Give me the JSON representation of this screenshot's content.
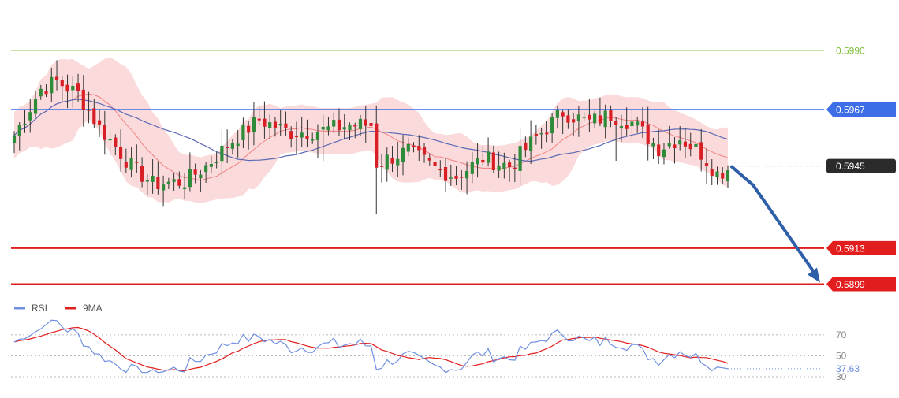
{
  "colors": {
    "bull": "#2e8b3a",
    "bear": "#d81f26",
    "bb_fill": "#f9d4d4",
    "ma_slow": "#5b6bb5",
    "ma_fast": "#ef6b6b",
    "resistance_green": "#7cbf3a",
    "resistance_blue": "#3d6ee8",
    "support_red": "#e21d1d",
    "arrow": "#2f5fa8",
    "rsi": "#6f8fe0",
    "rsi_ma": "#e21d1d",
    "last_price_bg": "#2b2b2b"
  },
  "chart_data": [
    {
      "type": "candlestick",
      "ylim": [
        0.5893,
        0.6002
      ],
      "levels": [
        {
          "value": 0.599,
          "label": "0.5990",
          "style": "resistance",
          "color": "#7cbf3a"
        },
        {
          "value": 0.5967,
          "label": "0.5967",
          "style": "resistance",
          "color": "#3d6ee8"
        },
        {
          "value": 0.5945,
          "label": "0.5945",
          "style": "last-price",
          "color": "#2b2b2b"
        },
        {
          "value": 0.5913,
          "label": "0.5913",
          "style": "support",
          "color": "#e21d1d"
        },
        {
          "value": 0.5899,
          "label": "0.5899",
          "style": "support",
          "color": "#e21d1d"
        }
      ],
      "forecast_arrow": {
        "from": 0.5945,
        "via": 0.594,
        "to": 0.5899
      },
      "anchors": [
        [
          0,
          0.5957
        ],
        [
          5,
          0.5975
        ],
        [
          8,
          0.5978
        ],
        [
          12,
          0.5973
        ],
        [
          16,
          0.596
        ],
        [
          22,
          0.5945
        ],
        [
          26,
          0.5938
        ],
        [
          32,
          0.5939
        ],
        [
          36,
          0.5945
        ],
        [
          41,
          0.5955
        ],
        [
          46,
          0.5963
        ],
        [
          52,
          0.5958
        ],
        [
          58,
          0.5959
        ],
        [
          63,
          0.5961
        ],
        [
          67,
          0.5961
        ],
        [
          68,
          0.5946
        ],
        [
          74,
          0.5951
        ],
        [
          79,
          0.5944
        ],
        [
          83,
          0.5941
        ],
        [
          88,
          0.5948
        ],
        [
          93,
          0.5945
        ],
        [
          98,
          0.5956
        ],
        [
          103,
          0.5966
        ],
        [
          108,
          0.5962
        ],
        [
          112,
          0.5965
        ],
        [
          116,
          0.5962
        ],
        [
          121,
          0.5952
        ],
        [
          125,
          0.5956
        ],
        [
          129,
          0.595
        ],
        [
          132,
          0.5942
        ],
        [
          134,
          0.5944
        ]
      ]
    },
    {
      "type": "line",
      "legend": [
        {
          "name": "RSI",
          "color": "#6f8fe0"
        },
        {
          "name": "9MA",
          "color": "#e21d1d"
        }
      ],
      "ylim": [
        30,
        85
      ],
      "ticks": [
        {
          "value": 70,
          "label": "70"
        },
        {
          "value": 50,
          "label": "50"
        },
        {
          "value": 30,
          "label": "30"
        }
      ],
      "last_value": {
        "value": 37.63,
        "label": "37.63"
      }
    }
  ]
}
